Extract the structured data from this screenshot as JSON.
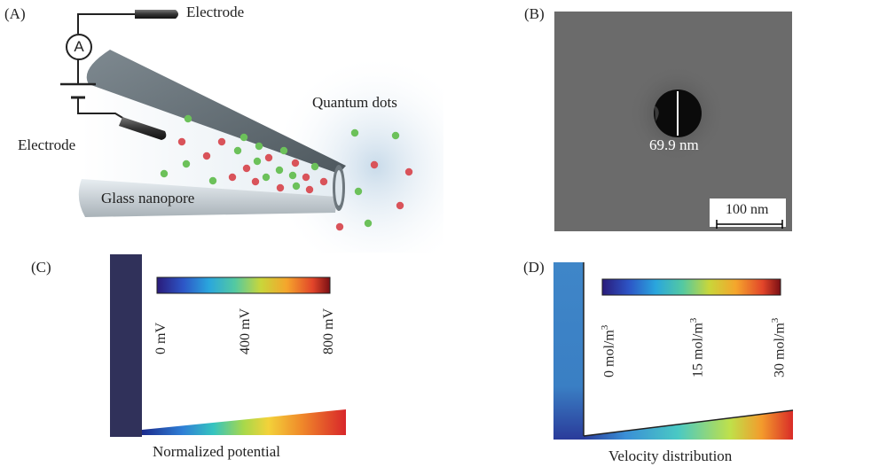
{
  "panels": {
    "a": {
      "label": "(A)",
      "electrode_top": "Electrode",
      "electrode_left": "Electrode",
      "ammeter": "A",
      "quantum_dots": "Quantum dots",
      "nanopore": "Glass nanopore"
    },
    "b": {
      "label": "(B)",
      "diameter": "69.9 nm",
      "scale_bar": "100 nm"
    },
    "c": {
      "label": "(C)",
      "colorbar_ticks": [
        "0 mV",
        "400 mV",
        "800 mV"
      ],
      "caption": "Normalized potential"
    },
    "d": {
      "label": "(D)",
      "caption": "Velocity distribution"
    }
  },
  "colors": {
    "dot_red": "#d9535a",
    "dot_green": "#6cc15a",
    "glass": "#8a949b",
    "sem_bg": "#6b6b6b"
  },
  "icons": {
    "ammeter": "ammeter-icon",
    "battery": "battery-icon"
  }
}
